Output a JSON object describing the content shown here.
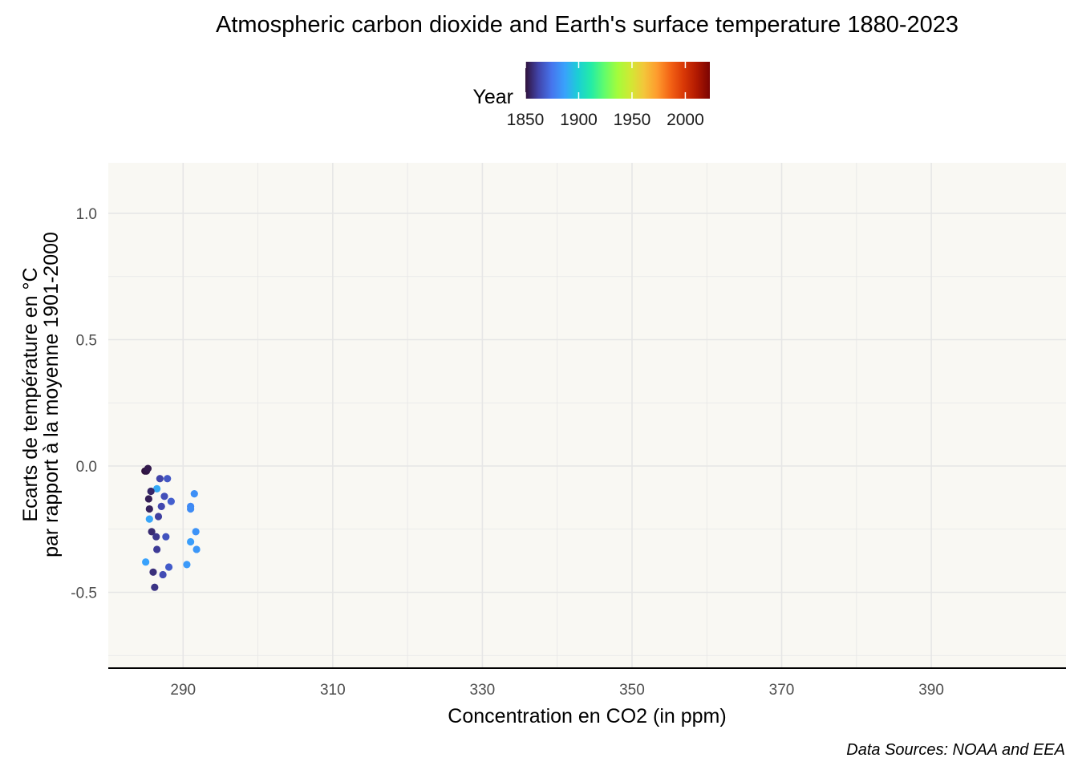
{
  "chart_data": {
    "type": "scatter",
    "title": "Atmospheric carbon dioxide and Earth's surface temperature 1880-2023",
    "xlabel": "Concentration en CO2 (in ppm)",
    "ylabel_line1": "Ecarts de température en °C",
    "ylabel_line2": "par rapport à la moyenne 1901-2000",
    "caption": "Data Sources: NOAA and EEA",
    "xlim": [
      280,
      408
    ],
    "ylim": [
      -0.8,
      1.2
    ],
    "x_ticks": [
      290,
      310,
      330,
      350,
      370,
      390
    ],
    "y_ticks": [
      1.0,
      0.5,
      0.0,
      -0.5
    ],
    "y_tick_labels": [
      "1.0",
      "0.5",
      "0.0",
      "-0.5"
    ],
    "grid": true,
    "legend": {
      "title": "Year",
      "position": "top",
      "type": "colorbar",
      "palette": "turbo",
      "range": [
        1850,
        2023
      ],
      "ticks": [
        1850,
        1900,
        1950,
        2000
      ]
    },
    "colors": {
      "panel_background": "#f9f8f3",
      "grid": "#e6e6e6",
      "turbo": [
        "#30123b",
        "#4145ab",
        "#4675ed",
        "#39a2fc",
        "#1bcfd4",
        "#24eca6",
        "#61fc6c",
        "#a4fc3b",
        "#d1e834",
        "#f3c63a",
        "#fe9b2d",
        "#f36315",
        "#d93806",
        "#b11901",
        "#7a0403"
      ]
    },
    "points": [
      {
        "year": 1880,
        "x": 291.0,
        "y": -0.16
      },
      {
        "year": 1881,
        "x": 291.0,
        "y": -0.17
      },
      {
        "year": 1882,
        "x": 291.5,
        "y": -0.11
      },
      {
        "year": 1883,
        "x": 291.7,
        "y": -0.26
      },
      {
        "year": 1884,
        "x": 291.8,
        "y": -0.33
      },
      {
        "year": 1885,
        "x": 290.5,
        "y": -0.39
      },
      {
        "year": 1886,
        "x": 291.0,
        "y": -0.3
      },
      {
        "year": 1887,
        "x": 285.0,
        "y": -0.38
      },
      {
        "year": 1888,
        "x": 285.5,
        "y": -0.21
      },
      {
        "year": 1889,
        "x": 286.5,
        "y": -0.09
      },
      {
        "year": 1850,
        "x": 284.9,
        "y": -0.02
      },
      {
        "year": 1851,
        "x": 285.1,
        "y": -0.02
      },
      {
        "year": 1852,
        "x": 285.3,
        "y": -0.01
      },
      {
        "year": 1853,
        "x": 285.4,
        "y": -0.13
      },
      {
        "year": 1854,
        "x": 285.5,
        "y": -0.17
      },
      {
        "year": 1855,
        "x": 285.7,
        "y": -0.1
      },
      {
        "year": 1856,
        "x": 285.8,
        "y": -0.26
      },
      {
        "year": 1857,
        "x": 286.0,
        "y": -0.42
      },
      {
        "year": 1858,
        "x": 286.2,
        "y": -0.48
      },
      {
        "year": 1859,
        "x": 286.4,
        "y": -0.28
      },
      {
        "year": 1860,
        "x": 286.5,
        "y": -0.33
      },
      {
        "year": 1861,
        "x": 286.7,
        "y": -0.2
      },
      {
        "year": 1862,
        "x": 286.9,
        "y": -0.05
      },
      {
        "year": 1863,
        "x": 287.1,
        "y": -0.16
      },
      {
        "year": 1864,
        "x": 287.3,
        "y": -0.43
      },
      {
        "year": 1865,
        "x": 287.5,
        "y": -0.12
      },
      {
        "year": 1866,
        "x": 287.7,
        "y": -0.28
      },
      {
        "year": 1867,
        "x": 287.9,
        "y": -0.05
      },
      {
        "year": 1868,
        "x": 288.1,
        "y": -0.4
      },
      {
        "year": 1869,
        "x": 288.4,
        "y": -0.14
      }
    ]
  }
}
